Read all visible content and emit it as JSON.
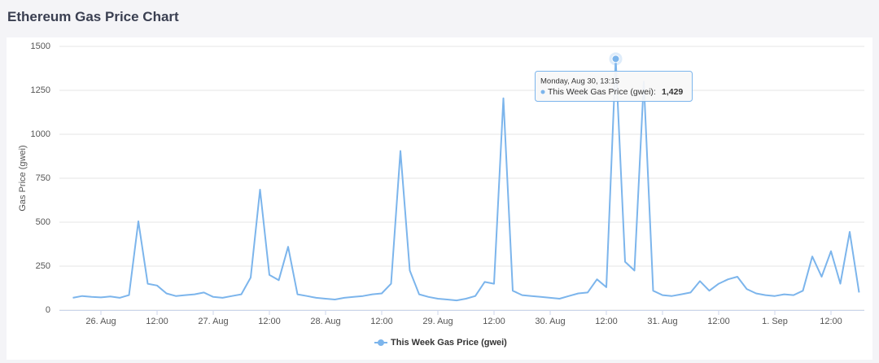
{
  "chart_data": {
    "type": "line",
    "title": "Ethereum Gas Price Chart",
    "y_label": "Gas Price (gwei)",
    "categories": [
      null,
      null,
      null,
      "26. Aug",
      null,
      null,
      null,
      null,
      null,
      "12:00",
      null,
      null,
      null,
      null,
      null,
      "27. Aug",
      null,
      null,
      null,
      null,
      null,
      "12:00",
      null,
      null,
      null,
      null,
      null,
      "28. Aug",
      null,
      null,
      null,
      null,
      null,
      "12:00",
      null,
      null,
      null,
      null,
      null,
      "29. Aug",
      null,
      null,
      null,
      null,
      null,
      "12:00",
      null,
      null,
      null,
      null,
      null,
      "30. Aug",
      null,
      null,
      null,
      null,
      null,
      "12:00",
      null,
      null,
      null,
      null,
      null,
      "31. Aug",
      null,
      null,
      null,
      null,
      null,
      "12:00",
      null,
      null,
      null,
      null,
      null,
      "1. Sep",
      null,
      null,
      null,
      null,
      null,
      "12:00",
      null,
      null,
      null
    ],
    "series": [
      {
        "name": "This Week Gas Price (gwei)",
        "color": "#7cb5ec",
        "values": [
          70,
          80,
          75,
          72,
          78,
          70,
          85,
          505,
          150,
          140,
          95,
          80,
          85,
          90,
          100,
          75,
          70,
          80,
          90,
          185,
          685,
          200,
          170,
          360,
          90,
          80,
          70,
          65,
          60,
          70,
          75,
          80,
          90,
          95,
          150,
          905,
          225,
          90,
          75,
          65,
          60,
          55,
          65,
          80,
          160,
          150,
          1205,
          110,
          85,
          80,
          75,
          70,
          65,
          80,
          95,
          100,
          175,
          130,
          1429,
          275,
          225,
          1300,
          110,
          85,
          80,
          90,
          100,
          165,
          110,
          150,
          175,
          190,
          120,
          95,
          85,
          80,
          90,
          85,
          110,
          305,
          190,
          335,
          150,
          445,
          100
        ]
      }
    ],
    "ylim": [
      0,
      1500
    ],
    "yticks": [
      0,
      250,
      500,
      750,
      1000,
      1250,
      1500
    ],
    "grid": true,
    "tooltip": {
      "date": "Monday, Aug 30, 13:15",
      "series": "This Week Gas Price (gwei):",
      "value": 1429,
      "value_label": "1,429"
    }
  }
}
